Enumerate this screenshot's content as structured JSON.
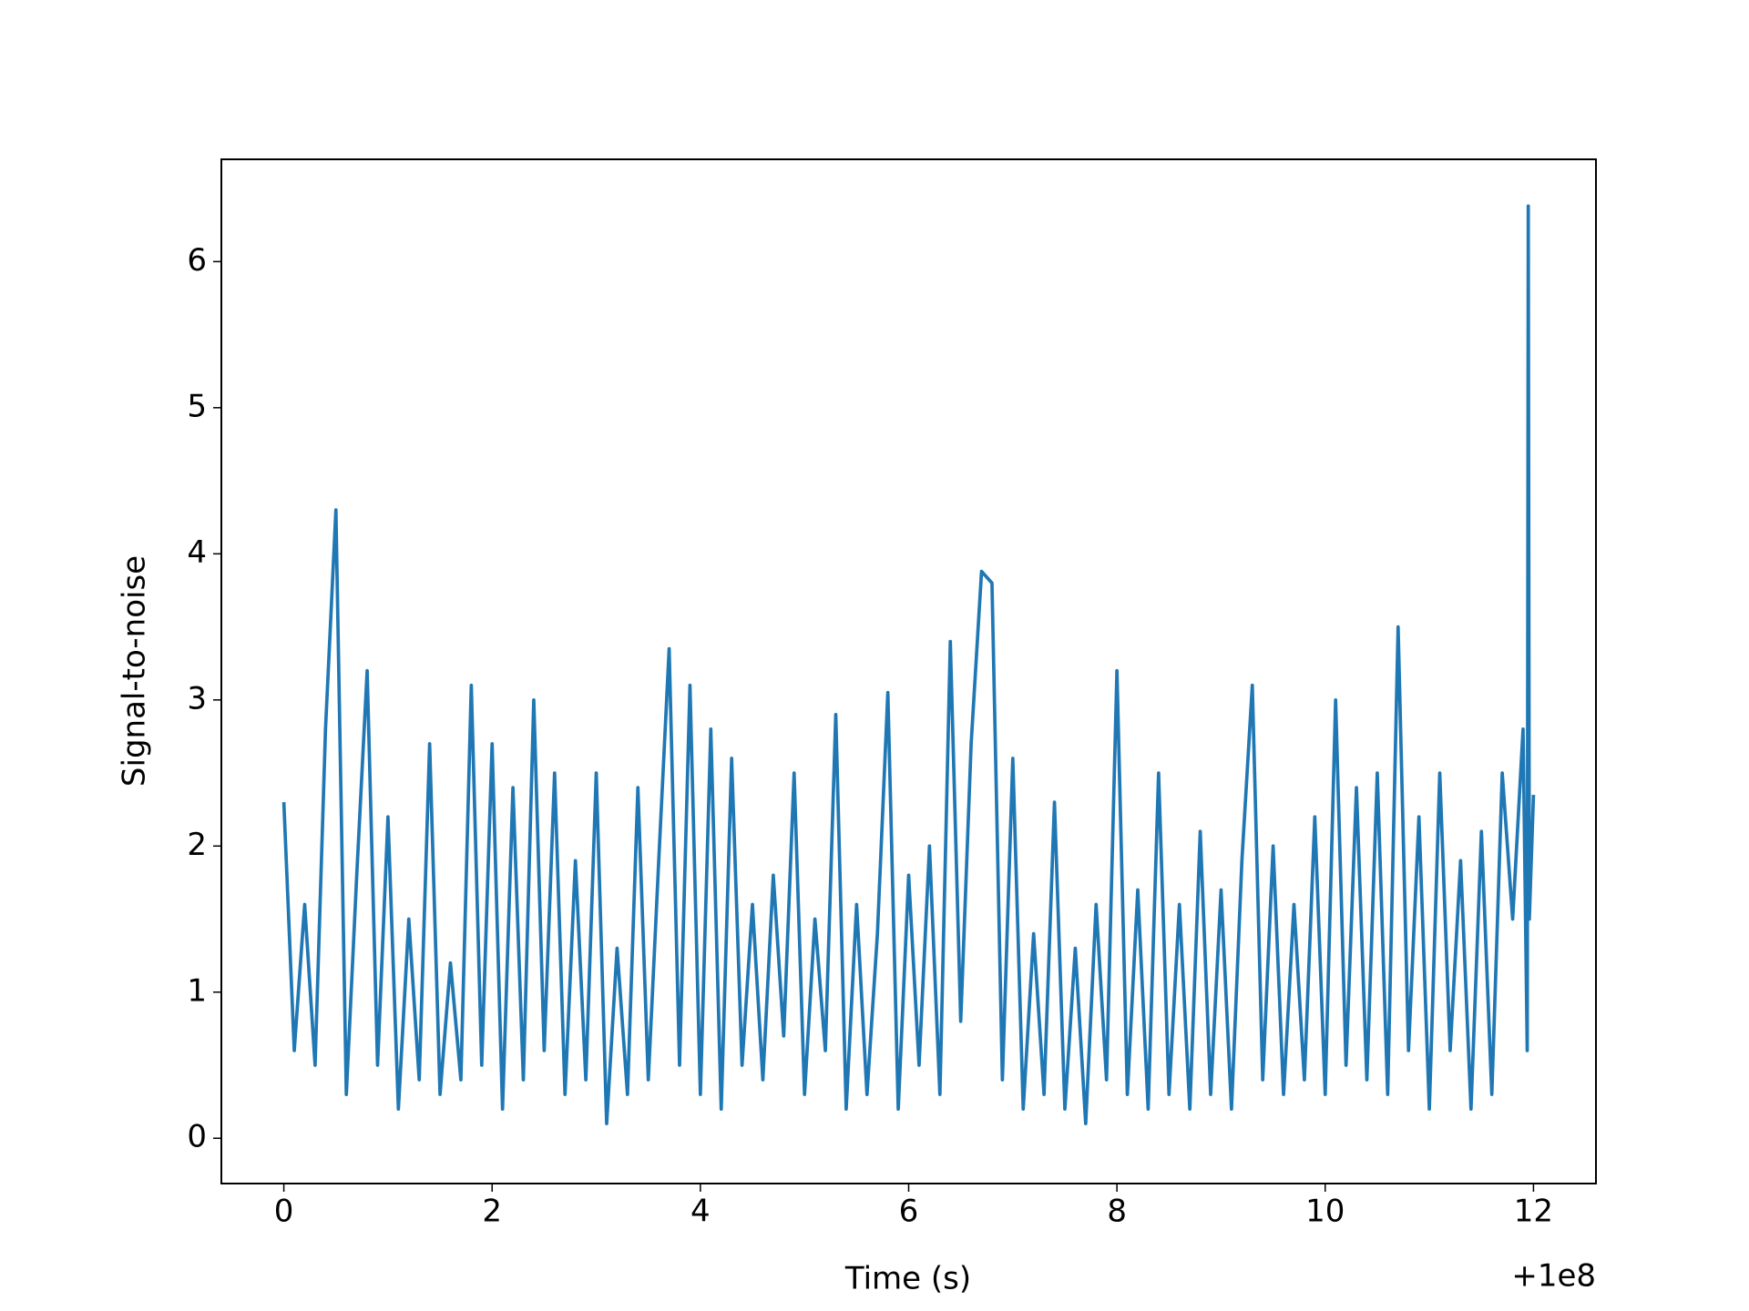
{
  "chart_data": {
    "type": "line",
    "xlabel": "Time (s)",
    "ylabel": "Signal-to-noise",
    "x_offset_label": "+1e8",
    "color": "#1f77b4",
    "x": [
      0.0,
      0.1,
      0.2,
      0.3,
      0.4,
      0.5,
      0.6,
      0.7,
      0.8,
      0.9,
      1.0,
      1.1,
      1.2,
      1.3,
      1.4,
      1.5,
      1.6,
      1.7,
      1.8,
      1.9,
      2.0,
      2.1,
      2.2,
      2.3,
      2.4,
      2.5,
      2.6,
      2.7,
      2.8,
      2.9,
      3.0,
      3.1,
      3.2,
      3.3,
      3.4,
      3.5,
      3.6,
      3.7,
      3.8,
      3.9,
      4.0,
      4.1,
      4.2,
      4.3,
      4.4,
      4.5,
      4.6,
      4.7,
      4.8,
      4.9,
      5.0,
      5.1,
      5.2,
      5.3,
      5.4,
      5.5,
      5.6,
      5.7,
      5.8,
      5.9,
      6.0,
      6.1,
      6.2,
      6.3,
      6.4,
      6.5,
      6.6,
      6.7,
      6.8,
      6.9,
      7.0,
      7.1,
      7.2,
      7.3,
      7.4,
      7.5,
      7.6,
      7.7,
      7.8,
      7.9,
      8.0,
      8.1,
      8.2,
      8.3,
      8.4,
      8.5,
      8.6,
      8.7,
      8.8,
      8.9,
      9.0,
      9.1,
      9.2,
      9.3,
      9.4,
      9.5,
      9.6,
      9.7,
      9.8,
      9.9,
      10.0,
      10.1,
      10.2,
      10.3,
      10.4,
      10.5,
      10.6,
      10.7,
      10.8,
      10.9,
      11.0,
      11.1,
      11.2,
      11.3,
      11.4,
      11.5,
      11.6,
      11.7,
      11.8,
      11.9,
      11.94,
      11.95,
      11.96,
      12.0
    ],
    "values": [
      2.3,
      0.6,
      1.6,
      0.5,
      2.8,
      4.3,
      0.3,
      1.8,
      3.2,
      0.5,
      2.2,
      0.2,
      1.5,
      0.4,
      2.7,
      0.3,
      1.2,
      0.4,
      3.1,
      0.5,
      2.7,
      0.2,
      2.4,
      0.4,
      3.0,
      0.6,
      2.5,
      0.3,
      1.9,
      0.4,
      2.5,
      0.1,
      1.3,
      0.3,
      2.4,
      0.4,
      1.9,
      3.35,
      0.5,
      3.1,
      0.3,
      2.8,
      0.2,
      2.6,
      0.5,
      1.6,
      0.4,
      1.8,
      0.7,
      2.5,
      0.3,
      1.5,
      0.6,
      2.9,
      0.2,
      1.6,
      0.3,
      1.4,
      3.05,
      0.2,
      1.8,
      0.5,
      2.0,
      0.3,
      3.4,
      0.8,
      2.7,
      3.88,
      3.8,
      0.4,
      2.6,
      0.2,
      1.4,
      0.3,
      2.3,
      0.2,
      1.3,
      0.1,
      1.6,
      0.4,
      3.2,
      0.3,
      1.7,
      0.2,
      2.5,
      0.3,
      1.6,
      0.2,
      2.1,
      0.3,
      1.7,
      0.2,
      1.9,
      3.1,
      0.4,
      2.0,
      0.3,
      1.6,
      0.4,
      2.2,
      0.3,
      3.0,
      0.5,
      2.4,
      0.4,
      2.5,
      0.3,
      3.5,
      0.6,
      2.2,
      0.2,
      2.5,
      0.6,
      1.9,
      0.2,
      2.1,
      0.3,
      2.5,
      1.5,
      2.8,
      0.6,
      6.38,
      1.5,
      2.35
    ],
    "xlim": [
      -0.6,
      12.6
    ],
    "ylim": [
      -0.31,
      6.7
    ],
    "xticks": [
      0,
      2,
      4,
      6,
      8,
      10,
      12
    ],
    "yticks": [
      0,
      1,
      2,
      3,
      4,
      5,
      6
    ]
  }
}
